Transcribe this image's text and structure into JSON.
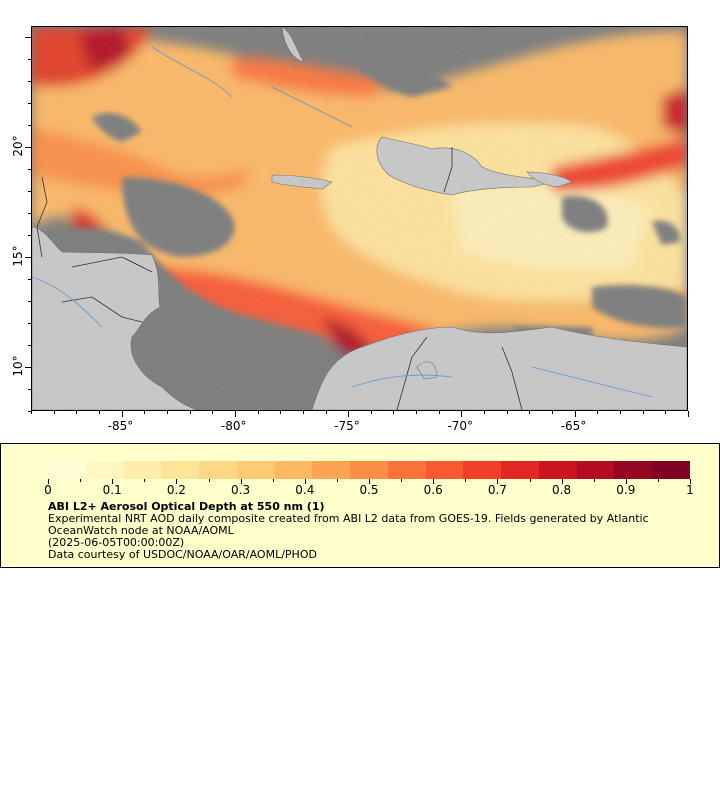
{
  "map": {
    "lon_ticks": [
      "-85°",
      "-80°",
      "-75°",
      "-70°",
      "-65°"
    ],
    "lat_ticks": [
      "20°",
      "15°",
      "10°"
    ],
    "colors": {
      "ocean_nodata": "#7a7a7a",
      "land": "#c8c8c8",
      "border": "#333333",
      "river": "#5b8fd6"
    },
    "extent": {
      "lon": [
        -89,
        -60
      ],
      "lat": [
        8,
        25.5
      ]
    }
  },
  "colorbar": {
    "range": [
      0,
      1
    ],
    "labels": [
      "0",
      "0.1",
      "0.2",
      "0.3",
      "0.4",
      "0.5",
      "0.6",
      "0.7",
      "0.8",
      "0.9",
      "1"
    ],
    "colors": [
      "#fffdd4",
      "#fff6c0",
      "#ffedac",
      "#ffe396",
      "#fed784",
      "#feca73",
      "#fdb863",
      "#fda454",
      "#fd8e45",
      "#fc743a",
      "#f95931",
      "#f0402a",
      "#e12823",
      "#cc1420",
      "#b30b22",
      "#940423",
      "#800026"
    ]
  },
  "legend": {
    "title": "ABI L2+ Aerosol Optical Depth at 550 nm (1)",
    "line1": "Experimental NRT AOD daily composite created from ABI L2 data from GOES-19. Fields generated by Atlantic OceanWatch node at NOAA/AOML",
    "line2": "(2025-06-05T00:00:00Z)",
    "line3": "Data courtesy of USDOC/NOAA/OAR/AOML/PHOD"
  }
}
